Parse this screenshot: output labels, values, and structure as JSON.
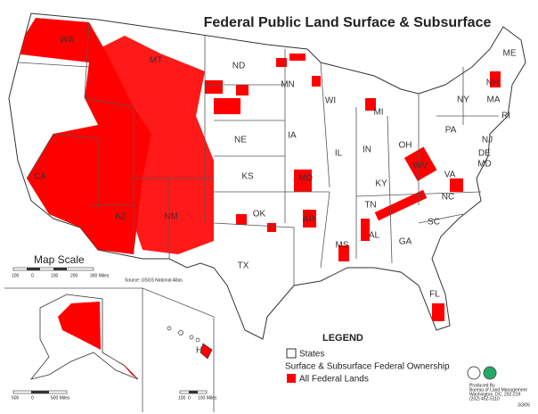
{
  "header": {
    "title": "Federal Public Land Surface & Subsurface"
  },
  "state_labels": [
    "WA",
    "MT",
    "ND",
    "MN",
    "ME",
    "NY",
    "NH",
    "MA",
    "RI",
    "MI",
    "WI",
    "PA",
    "NJ",
    "IA",
    "NE",
    "OH",
    "IN",
    "IL",
    "DE",
    "MD",
    "WV",
    "VA",
    "KS",
    "MO",
    "KY",
    "NC",
    "TN",
    "OK",
    "AR",
    "SC",
    "CA",
    "AZ",
    "NM",
    "MS",
    "AL",
    "GA",
    "TX",
    "FL",
    "HI"
  ],
  "map_scale": {
    "title": "Map Scale",
    "labels": [
      "100",
      "0",
      "100",
      "200",
      "300 Miles"
    ],
    "source": "Source: USGS National Atlas"
  },
  "alaska_scale": {
    "labels": [
      "500",
      "0",
      "500 Miles"
    ]
  },
  "hawaii_scale": {
    "labels": [
      "100",
      "0",
      "100 Miles"
    ]
  },
  "legend": {
    "title": "LEGEND",
    "states": "States",
    "subtitle": "Surface & Subsurface Federal Ownership",
    "federal": "All Federal Lands"
  },
  "producer": [
    "Produced By",
    "Bureau of Land Management",
    "Washington, DC, 202-219",
    "(202) 452-5110"
  ],
  "date": "3/3/05"
}
